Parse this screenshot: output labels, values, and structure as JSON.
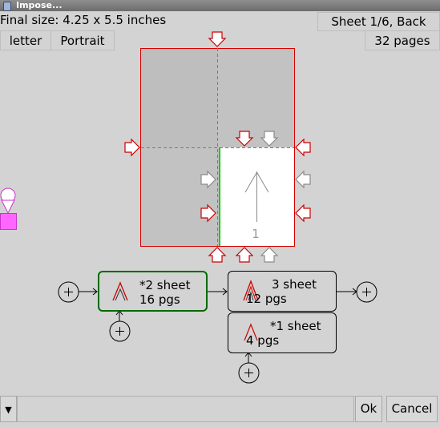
{
  "window": {
    "title": "Impose..."
  },
  "info": {
    "final_size": "Final size: 4.25 x 5.5 inches",
    "sheet_label": "Sheet 1/6, Back",
    "paper_size": "letter",
    "orientation": "Portrait",
    "page_count": "32 pages"
  },
  "preview": {
    "page_number": "1"
  },
  "signatures": [
    {
      "line1": "*2 sheet",
      "line2": "16 pgs",
      "selected": true
    },
    {
      "line1": "3 sheet",
      "line2": "12 pgs",
      "selected": false
    },
    {
      "line1": "*1 sheet",
      "line2": "4 pgs",
      "selected": false
    }
  ],
  "bottom": {
    "ok_label": "Ok",
    "cancel_label": "Cancel",
    "menu_glyph": "▼"
  },
  "colors": {
    "selected_border": "#006a00",
    "accent_red": "#cc0000",
    "marker_pink": "#ff66ff"
  }
}
